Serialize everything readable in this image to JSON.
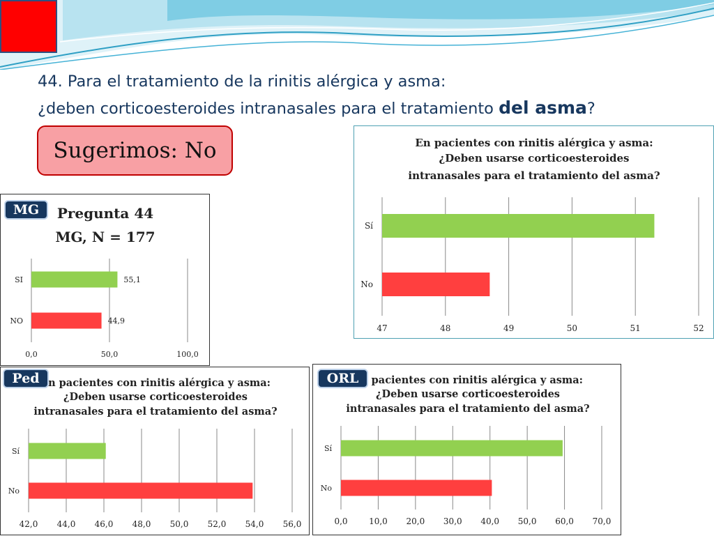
{
  "slide": {
    "title_line1": "44. Para el tratamiento de la rinitis alérgica y asma:",
    "title_line2_prefix": "¿deben corticoesteroides intranasales para el tratamiento ",
    "title_line2_bold": "del asma",
    "title_line2_suffix": "?",
    "suggestion": "Sugerimos: No",
    "accent_red": "#ff0000",
    "title_color": "#17375e"
  },
  "tags": {
    "mg": "MG",
    "ped": "Ped",
    "orl": "ORL"
  },
  "colors": {
    "green": "#92d050",
    "red": "#ff3f3f",
    "grid": "#888888"
  },
  "chart_data": [
    {
      "id": "mg",
      "type": "bar",
      "orientation": "horizontal",
      "title_lines": [
        "Pregunta 44",
        "MG, N = 177"
      ],
      "categories": [
        "SI",
        "NO"
      ],
      "values": [
        55.1,
        44.9
      ],
      "data_labels": [
        "55,1",
        "44,9"
      ],
      "bar_colors": [
        "#92d050",
        "#ff3f3f"
      ],
      "xlim": [
        0,
        100
      ],
      "x_ticks": [
        0,
        50,
        100
      ],
      "x_tick_labels": [
        "0,0",
        "50,0",
        "100,0"
      ],
      "grid": true
    },
    {
      "id": "all",
      "type": "bar",
      "orientation": "horizontal",
      "title_lines": [
        "En pacientes con rinitis alérgica y asma:",
        "¿Deben usarse corticoesteroides",
        "intranasales para el tratamiento del asma?"
      ],
      "categories": [
        "Sí",
        "No"
      ],
      "values": [
        51.3,
        48.7
      ],
      "bar_colors": [
        "#92d050",
        "#ff3f3f"
      ],
      "xlim": [
        47,
        52
      ],
      "x_ticks": [
        47,
        48,
        49,
        50,
        51,
        52
      ],
      "x_tick_labels": [
        "47",
        "48",
        "49",
        "50",
        "51",
        "52"
      ],
      "grid": true
    },
    {
      "id": "ped",
      "type": "bar",
      "orientation": "horizontal",
      "title_lines": [
        "En pacientes con rinitis alérgica y asma:",
        "¿Deben usarse corticoesteroides",
        "intranasales para el tratamiento del asma?"
      ],
      "categories": [
        "Sí",
        "No"
      ],
      "values": [
        46.1,
        53.9
      ],
      "bar_colors": [
        "#92d050",
        "#ff3f3f"
      ],
      "xlim": [
        42,
        56
      ],
      "x_ticks": [
        42,
        44,
        46,
        48,
        50,
        52,
        54,
        56
      ],
      "x_tick_labels": [
        "42,0",
        "44,0",
        "46,0",
        "48,0",
        "50,0",
        "52,0",
        "54,0",
        "56,0"
      ],
      "grid": true
    },
    {
      "id": "orl",
      "type": "bar",
      "orientation": "horizontal",
      "title_lines": [
        "En pacientes con rinitis alérgica y asma:",
        "¿Deben usarse corticoesteroides",
        "intranasales para el tratamiento del asma?"
      ],
      "categories": [
        "Sí",
        "No"
      ],
      "values": [
        59.5,
        40.5
      ],
      "bar_colors": [
        "#92d050",
        "#ff3f3f"
      ],
      "xlim": [
        0,
        70
      ],
      "x_ticks": [
        0,
        10,
        20,
        30,
        40,
        50,
        60,
        70
      ],
      "x_tick_labels": [
        "0,0",
        "10,0",
        "20,0",
        "30,0",
        "40,0",
        "50,0",
        "60,0",
        "70,0"
      ],
      "grid": true
    }
  ]
}
